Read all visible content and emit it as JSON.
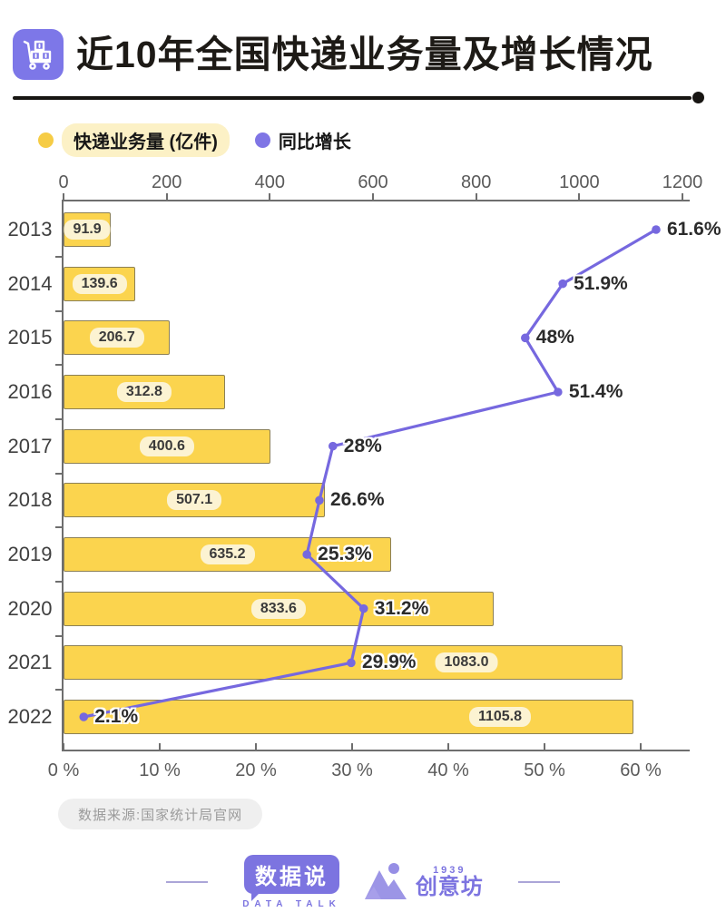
{
  "header": {
    "title": "近10年全国快递业务量及增长情况",
    "icon": "trolley-cart-icon"
  },
  "legend": {
    "items": [
      {
        "label": "快递业务量 (亿件)",
        "dot_color": "#F6CC45",
        "pill_bg": "#FCF1C6"
      },
      {
        "label": "同比增长",
        "dot_color": "#7F75E5"
      }
    ]
  },
  "colors": {
    "bar_fill": "#FBD44E",
    "bar_border": "#8C8055",
    "bar_label_bg": "#FCF3D2",
    "line": "#7668DF",
    "axis": "#6E6E6E",
    "accent_purple": "#7C74E0",
    "title_icon_bg": "#7D77E8"
  },
  "chart_data": {
    "type": "bar",
    "orientation": "horizontal",
    "grid": false,
    "legend_position": "top",
    "categories": [
      "2013",
      "2014",
      "2015",
      "2016",
      "2017",
      "2018",
      "2019",
      "2020",
      "2021",
      "2022"
    ],
    "series": [
      {
        "name": "快递业务量 (亿件)",
        "kind": "bar",
        "axis": "top",
        "axis_range": [
          0,
          1200
        ],
        "axis_tick_values": [
          0,
          200,
          400,
          600,
          800,
          1000,
          1200
        ],
        "axis_tick_labels": [
          "0",
          "200",
          "400",
          "600",
          "800",
          "1000",
          "1200"
        ],
        "values": [
          91.9,
          139.6,
          206.7,
          312.8,
          400.6,
          507.1,
          635.2,
          833.6,
          1083.0,
          1105.8
        ],
        "labels": [
          "91.9",
          "139.6",
          "206.7",
          "312.8",
          "400.6",
          "507.1",
          "635.2",
          "833.6",
          "1083.0",
          "1105.8"
        ],
        "label_x_overrides": {
          "8": 444,
          "9": 481
        }
      },
      {
        "name": "同比增长",
        "kind": "line",
        "axis": "bottom",
        "axis_range": [
          0,
          60
        ],
        "axis_tick_values": [
          0,
          10,
          20,
          30,
          40,
          50,
          60
        ],
        "axis_tick_labels": [
          "0 %",
          "10 %",
          "20 %",
          "30 %",
          "40 %",
          "50 %",
          "60 %"
        ],
        "values": [
          61.6,
          51.9,
          48,
          51.4,
          28,
          26.6,
          25.3,
          31.2,
          29.9,
          2.1
        ],
        "labels": [
          "61.6%",
          "51.9%",
          "48%",
          "51.4%",
          "28%",
          "26.6%",
          "25.3%",
          "31.2%",
          "29.9%",
          "2.1%"
        ]
      }
    ]
  },
  "source": {
    "label": "数据来源:国家统计局官网"
  },
  "footer": {
    "datatalk": {
      "name": "数据说",
      "subtitle": "DATA TALK"
    },
    "chuangyifang": {
      "year": "1939",
      "name": "创意坊"
    }
  }
}
